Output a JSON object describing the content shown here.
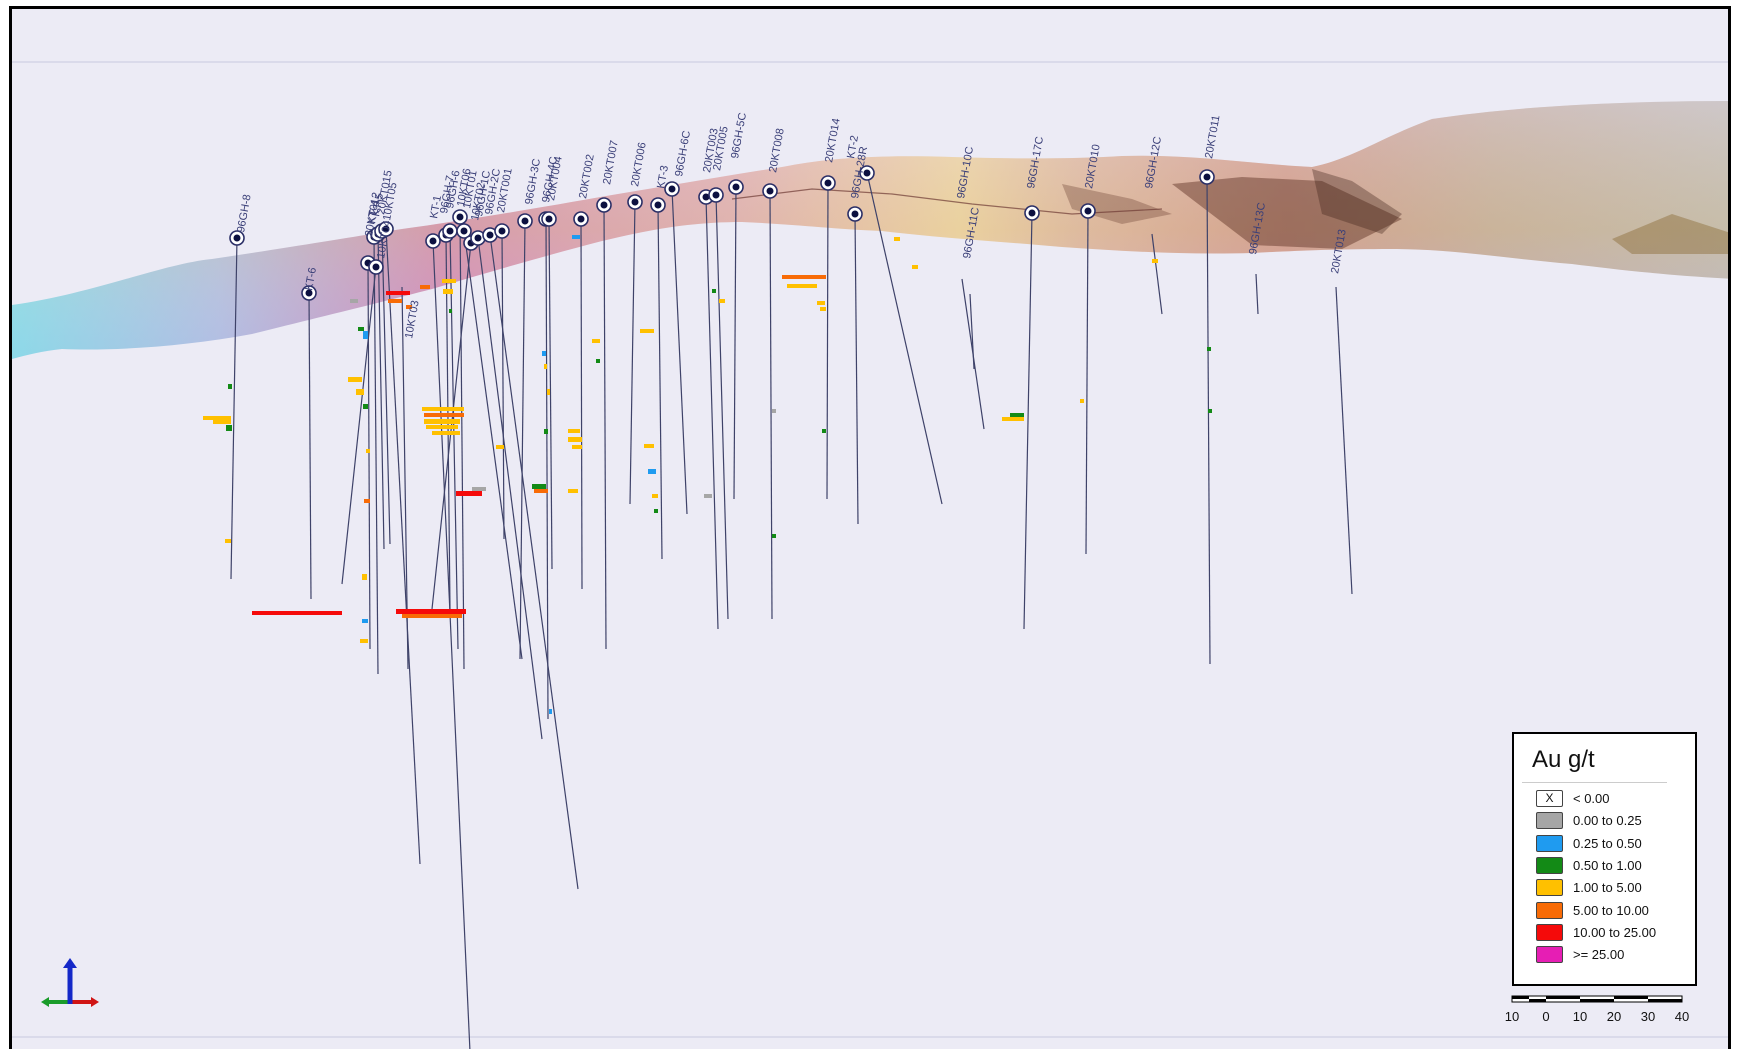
{
  "legend": {
    "title": "Au g/t",
    "items": [
      {
        "label": "< 0.00",
        "color": "#ffffff",
        "mark": "X"
      },
      {
        "label": "0.00 to 0.25",
        "color": "#a6a6a6",
        "mark": ""
      },
      {
        "label": "0.25 to 0.50",
        "color": "#1f9bf0",
        "mark": ""
      },
      {
        "label": "0.50 to 1.00",
        "color": "#138a16",
        "mark": ""
      },
      {
        "label": "1.00 to 5.00",
        "color": "#ffc000",
        "mark": ""
      },
      {
        "label": "5.00 to 10.00",
        "color": "#f86b06",
        "mark": ""
      },
      {
        "label": "10.00 to 25.00",
        "color": "#f50a0a",
        "mark": ""
      },
      {
        "label": ">= 25.00",
        "color": "#e61eb4",
        "mark": ""
      }
    ]
  },
  "scale_bar": {
    "ticks": [
      "10",
      "0",
      "10",
      "20",
      "30",
      "40"
    ]
  },
  "axis_triad": {
    "icon": "xyz-axis-triad-icon",
    "colors": {
      "x": "#d01414",
      "y": "#1a9c2a",
      "z": "#1428c8"
    }
  },
  "drillholes": [
    {
      "label": "96GH-8"
    },
    {
      "label": "KT-6"
    },
    {
      "label": "20KT012"
    },
    {
      "label": "KT-4"
    },
    {
      "label": "KT-5"
    },
    {
      "label": "20KT015"
    },
    {
      "label": "10KT05"
    },
    {
      "label": "10KT04"
    },
    {
      "label": "10KT03"
    },
    {
      "label": "KT-1"
    },
    {
      "label": "96GH-7"
    },
    {
      "label": "96GH-6"
    },
    {
      "label": "10KT06"
    },
    {
      "label": "10KT01"
    },
    {
      "label": "10KT02"
    },
    {
      "label": "96GH-1C"
    },
    {
      "label": "96GH-2C"
    },
    {
      "label": "20KT001"
    },
    {
      "label": "96GH-3C"
    },
    {
      "label": "96GH-4C"
    },
    {
      "label": "20KT004"
    },
    {
      "label": "20KT002"
    },
    {
      "label": "20KT007"
    },
    {
      "label": "20KT006"
    },
    {
      "label": "KT-3"
    },
    {
      "label": "96GH-6C"
    },
    {
      "label": "20KT003"
    },
    {
      "label": "20KT005"
    },
    {
      "label": "96GH-5C"
    },
    {
      "label": "20KT008"
    },
    {
      "label": "20KT014"
    },
    {
      "label": "KT-2"
    },
    {
      "label": "96GH-28R"
    },
    {
      "label": "96GH-10C"
    },
    {
      "label": "96GH-11C"
    },
    {
      "label": "96GH-17C"
    },
    {
      "label": "20KT010"
    },
    {
      "label": "96GH-12C"
    },
    {
      "label": "20KT011"
    },
    {
      "label": "96GH-13C"
    },
    {
      "label": "20KT013"
    }
  ]
}
